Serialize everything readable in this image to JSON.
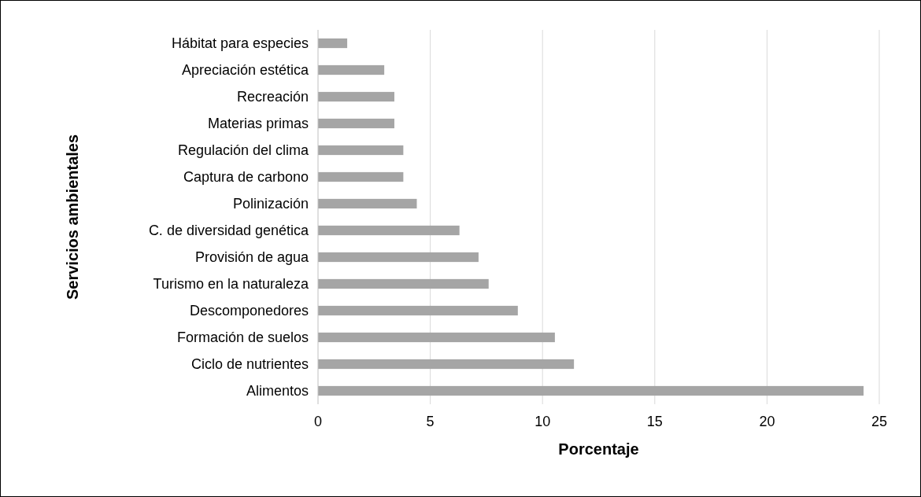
{
  "chart_data": {
    "type": "bar",
    "orientation": "horizontal",
    "xlabel": "Porcentaje",
    "ylabel": "Servicios ambientales",
    "categories": [
      "Hábitat para especies",
      "Apreciación estética",
      "Recreación",
      "Materias primas",
      "Regulación del clima",
      "Captura de carbono",
      "Polinización",
      "C. de diversidad genética",
      "Provisión de agua",
      "Turismo en la naturaleza",
      "Descomponedores",
      "Formación de suelos",
      "Ciclo de nutrientes",
      "Alimentos"
    ],
    "values": [
      1.3,
      2.95,
      3.4,
      3.4,
      3.8,
      3.8,
      4.4,
      6.3,
      7.15,
      7.6,
      8.9,
      10.55,
      11.4,
      24.3
    ],
    "color": "#a5a5a5",
    "xlim": [
      0,
      25
    ],
    "xticks": [
      0,
      5,
      10,
      15,
      20,
      25
    ],
    "grid": "x"
  }
}
